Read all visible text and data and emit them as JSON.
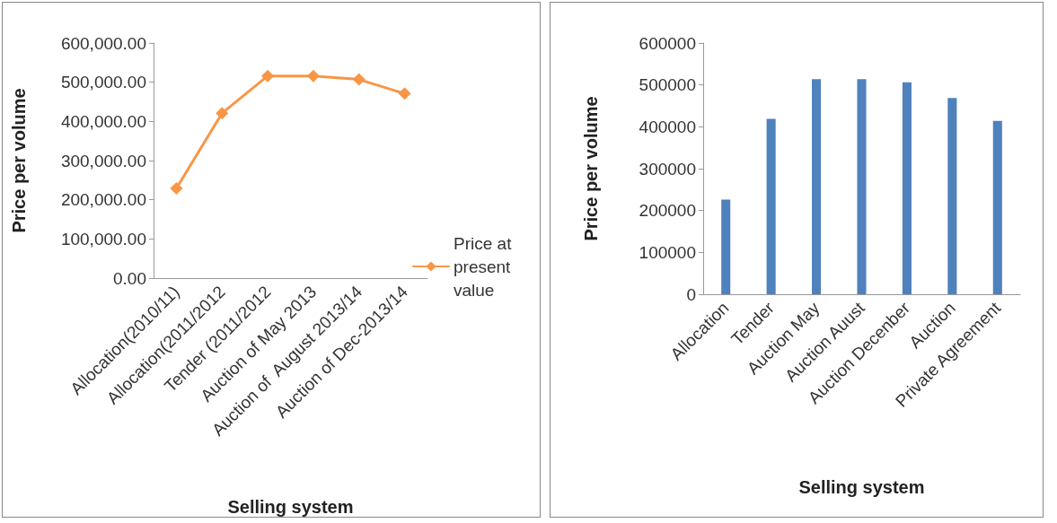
{
  "chart_data": [
    {
      "type": "line",
      "xlabel": "Selling system",
      "ylabel": "Price per volume",
      "categories": [
        "Allocation(2010/11)",
        "Allocation(2011/2012",
        "Tender (2011/2012",
        "Auction of May 2013",
        "Auction of  August 2013/14",
        "Auction of Dec-2013/14"
      ],
      "series": [
        {
          "name": "Price at present value",
          "color": "#f79646",
          "values": [
            229000,
            421000,
            516000,
            516000,
            507000,
            471000
          ]
        }
      ],
      "ylim": [
        0,
        600000
      ],
      "yticks": [
        {
          "value": 0,
          "label": "0.00"
        },
        {
          "value": 100000,
          "label": "100,000.00"
        },
        {
          "value": 200000,
          "label": "200,000.00"
        },
        {
          "value": 300000,
          "label": "300,000.00"
        },
        {
          "value": 400000,
          "label": "400,000.00"
        },
        {
          "value": 500000,
          "label": "500,000.00"
        },
        {
          "value": 600000,
          "label": "600,000.00"
        }
      ],
      "marker": "diamond",
      "legend": "right",
      "grid": false
    },
    {
      "type": "bar",
      "xlabel": "Selling system",
      "ylabel": "Price per volume",
      "categories": [
        "Allocation",
        "Tender",
        "Auction May",
        "Auction Auust",
        "Auction Decenber",
        "Auction",
        "Private Agreement"
      ],
      "series": [
        {
          "color": "#4f81bd",
          "values": [
            226000,
            419000,
            514000,
            514000,
            506000,
            469000,
            414000
          ]
        }
      ],
      "ylim": [
        0,
        600000
      ],
      "yticks": [
        0,
        100000,
        200000,
        300000,
        400000,
        500000,
        600000
      ],
      "grid": false
    }
  ]
}
